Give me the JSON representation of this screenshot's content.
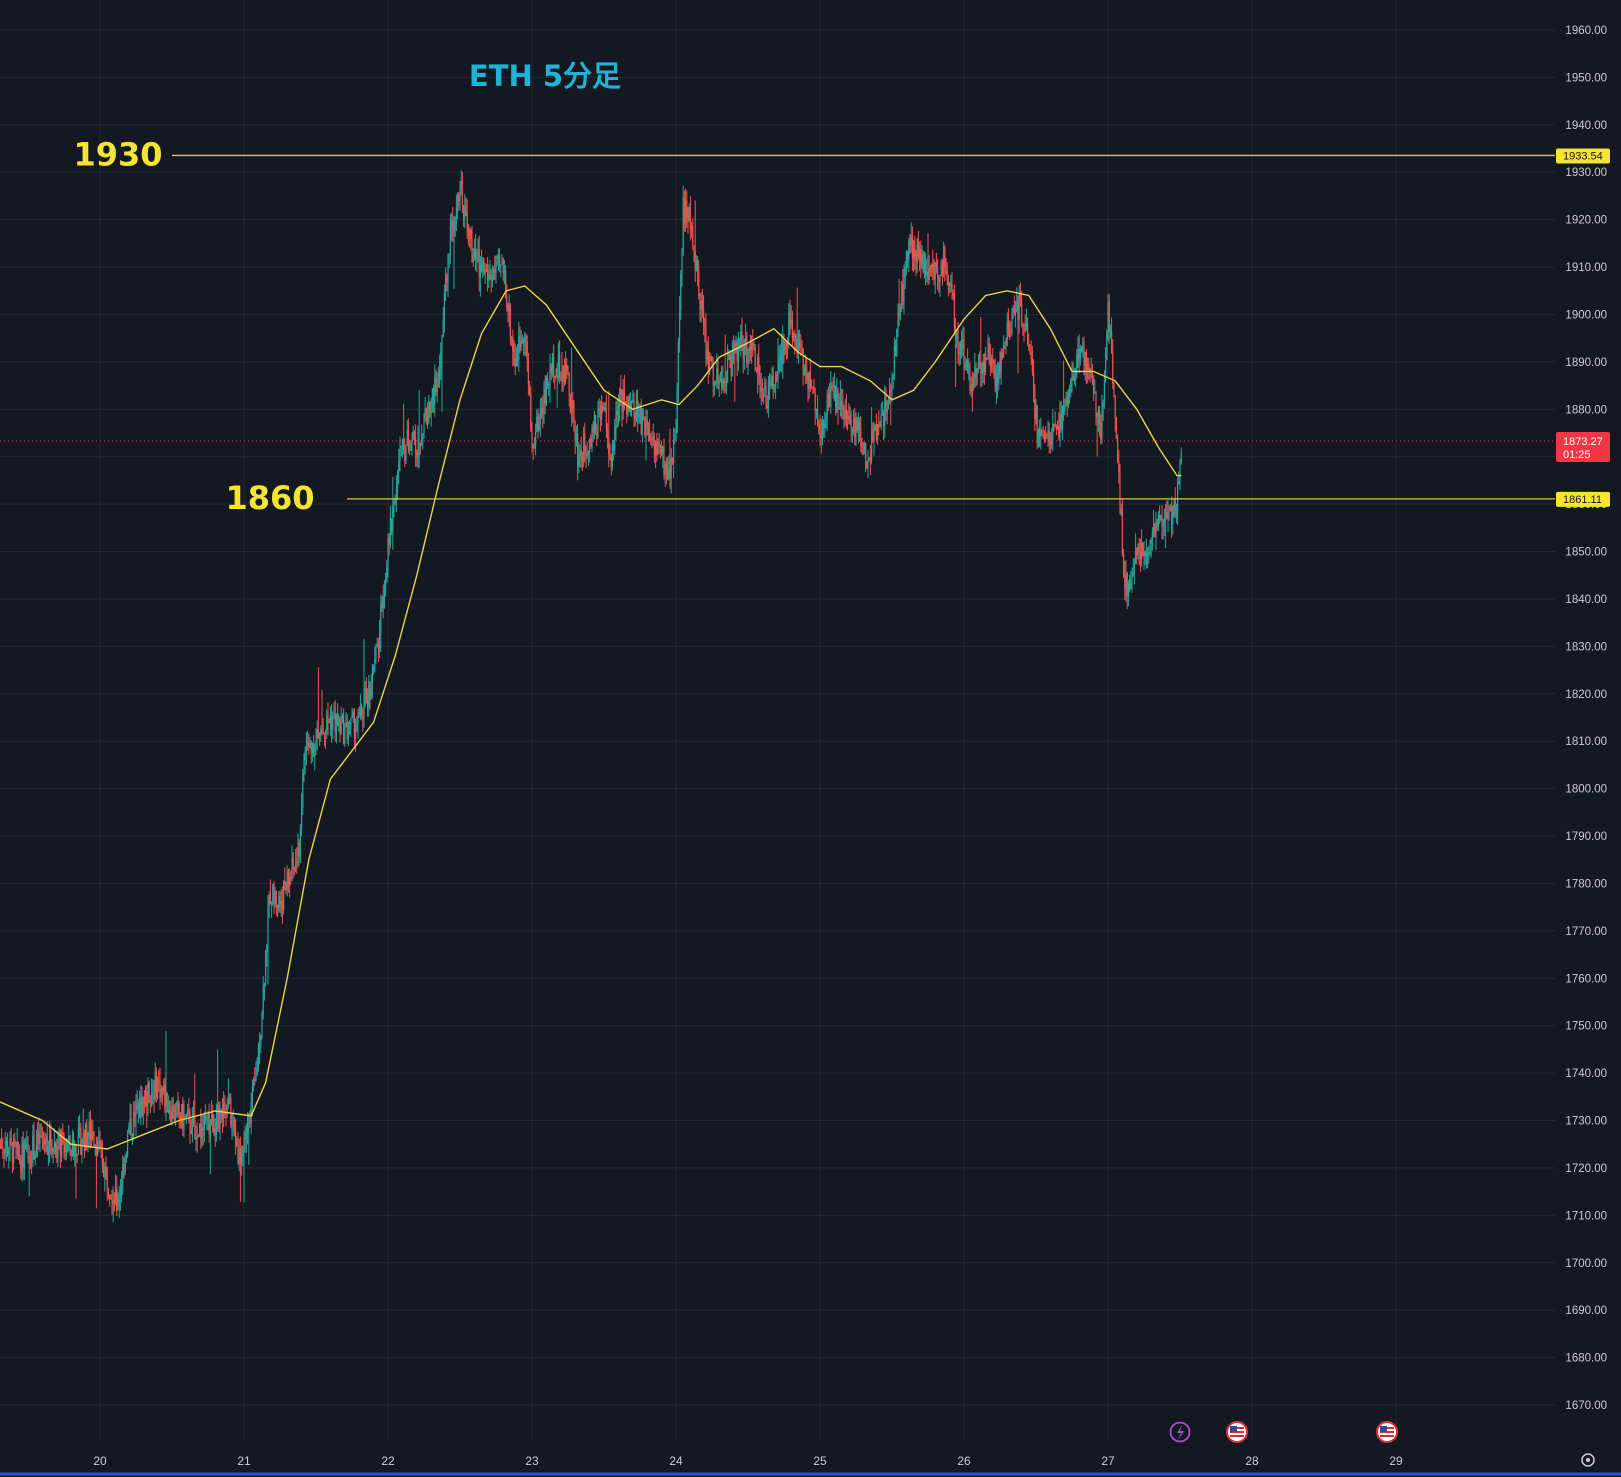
{
  "chart_data": {
    "type": "candlestick",
    "title": "ETH 5分足",
    "title_color": "#1fb4d6",
    "background": "#141821",
    "up_color": "#26a69a",
    "down_color": "#ef5350",
    "ma_color": "#e8d64a",
    "ylim": [
      1662,
      1970
    ],
    "y_ticks": [
      "1960.00",
      "1950.00",
      "1940.00",
      "1930.00",
      "1920.00",
      "1910.00",
      "1900.00",
      "1890.00",
      "1880.00",
      "1870.00",
      "1860.00",
      "1850.00",
      "1840.00",
      "1830.00",
      "1820.00",
      "1810.00",
      "1800.00",
      "1790.00",
      "1780.00",
      "1770.00",
      "1760.00",
      "1750.00",
      "1740.00",
      "1730.00",
      "1720.00",
      "1710.00",
      "1700.00",
      "1690.00",
      "1680.00",
      "1670.00"
    ],
    "x_ticks": [
      "20",
      "21",
      "22",
      "23",
      "24",
      "25",
      "26",
      "27",
      "28",
      "29"
    ],
    "price_path": [
      [
        19.3,
        1726
      ],
      [
        19.45,
        1722
      ],
      [
        19.6,
        1726
      ],
      [
        19.8,
        1724
      ],
      [
        19.95,
        1728
      ],
      [
        20.05,
        1718
      ],
      [
        20.12,
        1712
      ],
      [
        20.2,
        1728
      ],
      [
        20.3,
        1734
      ],
      [
        20.4,
        1738
      ],
      [
        20.5,
        1732
      ],
      [
        20.6,
        1730
      ],
      [
        20.7,
        1728
      ],
      [
        20.8,
        1730
      ],
      [
        20.9,
        1732
      ],
      [
        20.97,
        1722
      ],
      [
        21.02,
        1728
      ],
      [
        21.08,
        1738
      ],
      [
        21.12,
        1752
      ],
      [
        21.18,
        1778
      ],
      [
        21.25,
        1776
      ],
      [
        21.3,
        1780
      ],
      [
        21.38,
        1786
      ],
      [
        21.42,
        1808
      ],
      [
        21.5,
        1810
      ],
      [
        21.6,
        1815
      ],
      [
        21.7,
        1812
      ],
      [
        21.8,
        1814
      ],
      [
        21.88,
        1822
      ],
      [
        21.93,
        1830
      ],
      [
        21.98,
        1845
      ],
      [
        22.04,
        1860
      ],
      [
        22.08,
        1870
      ],
      [
        22.15,
        1874
      ],
      [
        22.2,
        1872
      ],
      [
        22.28,
        1880
      ],
      [
        22.35,
        1886
      ],
      [
        22.42,
        1914
      ],
      [
        22.5,
        1928
      ],
      [
        22.55,
        1918
      ],
      [
        22.6,
        1912
      ],
      [
        22.7,
        1908
      ],
      [
        22.8,
        1910
      ],
      [
        22.88,
        1890
      ],
      [
        22.95,
        1898
      ],
      [
        23.0,
        1872
      ],
      [
        23.08,
        1882
      ],
      [
        23.15,
        1890
      ],
      [
        23.25,
        1886
      ],
      [
        23.32,
        1870
      ],
      [
        23.4,
        1874
      ],
      [
        23.5,
        1880
      ],
      [
        23.55,
        1868
      ],
      [
        23.6,
        1882
      ],
      [
        23.7,
        1880
      ],
      [
        23.8,
        1876
      ],
      [
        23.9,
        1870
      ],
      [
        23.95,
        1866
      ],
      [
        24.0,
        1876
      ],
      [
        24.05,
        1922
      ],
      [
        24.1,
        1920
      ],
      [
        24.15,
        1908
      ],
      [
        24.22,
        1890
      ],
      [
        24.28,
        1886
      ],
      [
        24.35,
        1888
      ],
      [
        24.45,
        1894
      ],
      [
        24.55,
        1890
      ],
      [
        24.62,
        1882
      ],
      [
        24.7,
        1888
      ],
      [
        24.78,
        1898
      ],
      [
        24.85,
        1892
      ],
      [
        24.92,
        1886
      ],
      [
        25.0,
        1875
      ],
      [
        25.08,
        1884
      ],
      [
        25.15,
        1880
      ],
      [
        25.25,
        1876
      ],
      [
        25.32,
        1870
      ],
      [
        25.4,
        1876
      ],
      [
        25.48,
        1882
      ],
      [
        25.55,
        1900
      ],
      [
        25.62,
        1916
      ],
      [
        25.7,
        1912
      ],
      [
        25.8,
        1908
      ],
      [
        25.87,
        1912
      ],
      [
        25.95,
        1896
      ],
      [
        26.05,
        1886
      ],
      [
        26.12,
        1888
      ],
      [
        26.18,
        1892
      ],
      [
        26.22,
        1886
      ],
      [
        26.3,
        1896
      ],
      [
        26.38,
        1902
      ],
      [
        26.45,
        1894
      ],
      [
        26.52,
        1872
      ],
      [
        26.58,
        1876
      ],
      [
        26.65,
        1874
      ],
      [
        26.72,
        1884
      ],
      [
        26.8,
        1892
      ],
      [
        26.88,
        1888
      ],
      [
        26.95,
        1876
      ],
      [
        27.0,
        1900
      ],
      [
        27.04,
        1886
      ],
      [
        27.08,
        1862
      ],
      [
        27.12,
        1842
      ],
      [
        27.18,
        1848
      ],
      [
        27.25,
        1850
      ],
      [
        27.32,
        1854
      ],
      [
        27.4,
        1856
      ],
      [
        27.48,
        1860
      ],
      [
        27.51,
        1874
      ]
    ],
    "ma_path": [
      [
        19.3,
        1734
      ],
      [
        19.6,
        1730
      ],
      [
        19.8,
        1725
      ],
      [
        20.05,
        1724
      ],
      [
        20.3,
        1727
      ],
      [
        20.55,
        1730
      ],
      [
        20.8,
        1732
      ],
      [
        21.05,
        1731
      ],
      [
        21.15,
        1738
      ],
      [
        21.3,
        1760
      ],
      [
        21.45,
        1785
      ],
      [
        21.6,
        1802
      ],
      [
        21.75,
        1808
      ],
      [
        21.9,
        1814
      ],
      [
        22.05,
        1828
      ],
      [
        22.2,
        1845
      ],
      [
        22.35,
        1864
      ],
      [
        22.5,
        1882
      ],
      [
        22.65,
        1896
      ],
      [
        22.82,
        1905
      ],
      [
        22.95,
        1906
      ],
      [
        23.1,
        1902
      ],
      [
        23.3,
        1893
      ],
      [
        23.5,
        1884
      ],
      [
        23.7,
        1880
      ],
      [
        23.9,
        1882
      ],
      [
        24.02,
        1881
      ],
      [
        24.15,
        1885
      ],
      [
        24.3,
        1891
      ],
      [
        24.5,
        1894
      ],
      [
        24.68,
        1897
      ],
      [
        24.85,
        1892
      ],
      [
        25.0,
        1889
      ],
      [
        25.15,
        1889
      ],
      [
        25.35,
        1886
      ],
      [
        25.5,
        1882
      ],
      [
        25.65,
        1884
      ],
      [
        25.8,
        1890
      ],
      [
        26.0,
        1899
      ],
      [
        26.15,
        1904
      ],
      [
        26.3,
        1905
      ],
      [
        26.45,
        1904
      ],
      [
        26.6,
        1897
      ],
      [
        26.75,
        1888
      ],
      [
        26.9,
        1888
      ],
      [
        27.05,
        1886
      ],
      [
        27.2,
        1880
      ],
      [
        27.35,
        1872
      ],
      [
        27.48,
        1866
      ],
      [
        27.51,
        1866
      ]
    ],
    "horizontal_levels": [
      {
        "label": "1930",
        "price": 1933.54,
        "price_label": "1933.54"
      },
      {
        "label": "1860",
        "price": 1861.11,
        "price_label": "1861.11"
      }
    ],
    "last_price": {
      "price": 1873.27,
      "price_label": "1873.27",
      "countdown": "01:25",
      "color": "#f23645"
    }
  }
}
